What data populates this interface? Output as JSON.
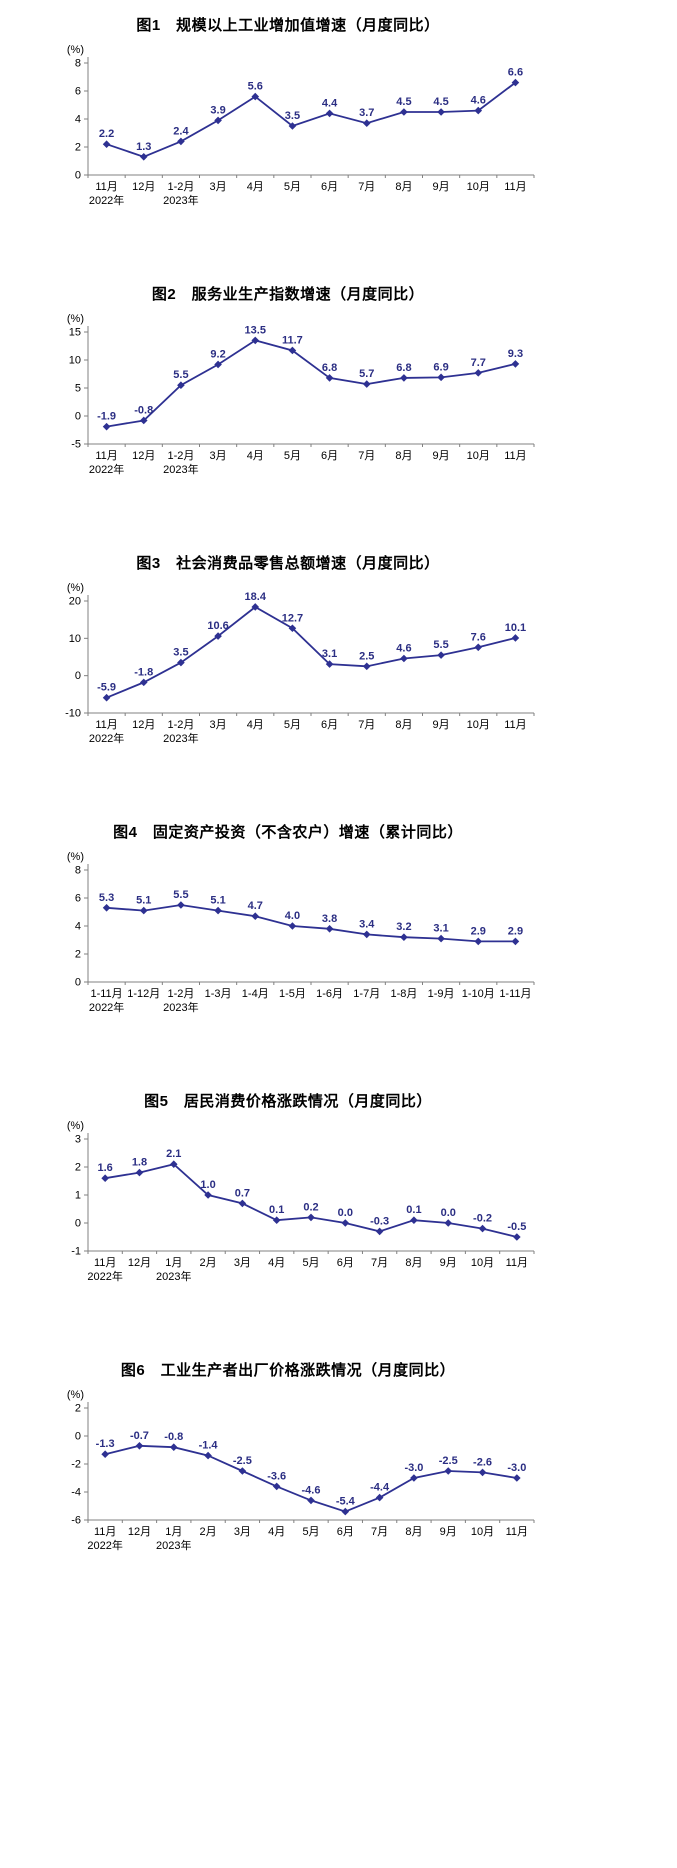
{
  "page": {
    "background": "#ffffff"
  },
  "colors": {
    "line": "#2E3192",
    "label": "#2B2E83",
    "axis": "#808080",
    "tick_text": "#000000"
  },
  "chart_data": [
    {
      "type": "line",
      "title": "图1　规模以上工业增加值增速（月度同比）",
      "unit": "(%)",
      "xlabel": "",
      "ylabel": "",
      "ylim": [
        0,
        8
      ],
      "yticks": [
        0,
        2,
        4,
        6,
        8
      ],
      "grid": false,
      "legend": null,
      "categories": [
        "11月",
        "12月",
        "1-2月",
        "3月",
        "4月",
        "5月",
        "6月",
        "7月",
        "8月",
        "9月",
        "10月",
        "11月"
      ],
      "year_marks": [
        {
          "index": 0,
          "label": "2022年"
        },
        {
          "index": 2,
          "label": "2023年"
        }
      ],
      "values": [
        2.2,
        1.3,
        2.4,
        3.9,
        5.6,
        3.5,
        4.4,
        3.7,
        4.5,
        4.5,
        4.6,
        6.6
      ],
      "labels": [
        "2.2",
        "1.3",
        "2.4",
        "3.9",
        "5.6",
        "3.5",
        "4.4",
        "3.7",
        "4.5",
        "4.5",
        "4.6",
        "6.6"
      ]
    },
    {
      "type": "line",
      "title": "图2　服务业生产指数增速（月度同比）",
      "unit": "(%)",
      "xlabel": "",
      "ylabel": "",
      "ylim": [
        -5,
        15
      ],
      "yticks": [
        -5,
        0,
        5,
        10,
        15
      ],
      "grid": false,
      "legend": null,
      "categories": [
        "11月",
        "12月",
        "1-2月",
        "3月",
        "4月",
        "5月",
        "6月",
        "7月",
        "8月",
        "9月",
        "10月",
        "11月"
      ],
      "year_marks": [
        {
          "index": 0,
          "label": "2022年"
        },
        {
          "index": 2,
          "label": "2023年"
        }
      ],
      "values": [
        -1.9,
        -0.8,
        5.5,
        9.2,
        13.5,
        11.7,
        6.8,
        5.7,
        6.8,
        6.9,
        7.7,
        9.3
      ],
      "labels": [
        "-1.9",
        "-0.8",
        "5.5",
        "9.2",
        "13.5",
        "11.7",
        "6.8",
        "5.7",
        "6.8",
        "6.9",
        "7.7",
        "9.3"
      ]
    },
    {
      "type": "line",
      "title": "图3　社会消费品零售总额增速（月度同比）",
      "unit": "(%)",
      "xlabel": "",
      "ylabel": "",
      "ylim": [
        -10,
        20
      ],
      "yticks": [
        -10,
        0,
        10,
        20
      ],
      "grid": false,
      "legend": null,
      "categories": [
        "11月",
        "12月",
        "1-2月",
        "3月",
        "4月",
        "5月",
        "6月",
        "7月",
        "8月",
        "9月",
        "10月",
        "11月"
      ],
      "year_marks": [
        {
          "index": 0,
          "label": "2022年"
        },
        {
          "index": 2,
          "label": "2023年"
        }
      ],
      "values": [
        -5.9,
        -1.8,
        3.5,
        10.6,
        18.4,
        12.7,
        3.1,
        2.5,
        4.6,
        5.5,
        7.6,
        10.1
      ],
      "labels": [
        "-5.9",
        "-1.8",
        "3.5",
        "10.6",
        "18.4",
        "12.7",
        "3.1",
        "2.5",
        "4.6",
        "5.5",
        "7.6",
        "10.1"
      ]
    },
    {
      "type": "line",
      "title": "图4　固定资产投资（不含农户）增速（累计同比）",
      "unit": "(%)",
      "xlabel": "",
      "ylabel": "",
      "ylim": [
        0,
        8
      ],
      "yticks": [
        0,
        2,
        4,
        6,
        8
      ],
      "grid": false,
      "legend": null,
      "categories": [
        "1-11月",
        "1-12月",
        "1-2月",
        "1-3月",
        "1-4月",
        "1-5月",
        "1-6月",
        "1-7月",
        "1-8月",
        "1-9月",
        "1-10月",
        "1-11月"
      ],
      "year_marks": [
        {
          "index": 0,
          "label": "2022年"
        },
        {
          "index": 2,
          "label": "2023年"
        }
      ],
      "values": [
        5.3,
        5.1,
        5.5,
        5.1,
        4.7,
        4.0,
        3.8,
        3.4,
        3.2,
        3.1,
        2.9,
        2.9
      ],
      "labels": [
        "5.3",
        "5.1",
        "5.5",
        "5.1",
        "4.7",
        "4.0",
        "3.8",
        "3.4",
        "3.2",
        "3.1",
        "2.9",
        "2.9"
      ]
    },
    {
      "type": "line",
      "title": "图5　居民消费价格涨跌情况（月度同比）",
      "unit": "(%)",
      "xlabel": "",
      "ylabel": "",
      "ylim": [
        -1,
        3
      ],
      "yticks": [
        -1,
        0,
        1,
        2,
        3
      ],
      "grid": false,
      "legend": null,
      "categories": [
        "11月",
        "12月",
        "1月",
        "2月",
        "3月",
        "4月",
        "5月",
        "6月",
        "7月",
        "8月",
        "9月",
        "10月",
        "11月"
      ],
      "year_marks": [
        {
          "index": 0,
          "label": "2022年"
        },
        {
          "index": 2,
          "label": "2023年"
        }
      ],
      "values": [
        1.6,
        1.8,
        2.1,
        1.0,
        0.7,
        0.1,
        0.2,
        0.0,
        -0.3,
        0.1,
        0.0,
        -0.2,
        -0.5
      ],
      "labels": [
        "1.6",
        "1.8",
        "2.1",
        "1.0",
        "0.7",
        "0.1",
        "0.2",
        "0.0",
        "-0.3",
        "0.1",
        "0.0",
        "-0.2",
        "-0.5"
      ]
    },
    {
      "type": "line",
      "title": "图6　工业生产者出厂价格涨跌情况（月度同比）",
      "unit": "(%)",
      "xlabel": "",
      "ylabel": "",
      "ylim": [
        -6,
        2
      ],
      "yticks": [
        -6,
        -4,
        -2,
        0,
        2
      ],
      "grid": false,
      "legend": null,
      "categories": [
        "11月",
        "12月",
        "1月",
        "2月",
        "3月",
        "4月",
        "5月",
        "6月",
        "7月",
        "8月",
        "9月",
        "10月",
        "11月"
      ],
      "year_marks": [
        {
          "index": 0,
          "label": "2022年"
        },
        {
          "index": 2,
          "label": "2023年"
        }
      ],
      "values": [
        -1.3,
        -0.7,
        -0.8,
        -1.4,
        -2.5,
        -3.6,
        -4.6,
        -5.4,
        -4.4,
        -3.0,
        -2.5,
        -2.6,
        -3.0
      ],
      "labels": [
        "-1.3",
        "-0.7",
        "-0.8",
        "-1.4",
        "-2.5",
        "-3.6",
        "-4.6",
        "-5.4",
        "-4.4",
        "-3.0",
        "-2.5",
        "-2.6",
        "-3.0"
      ]
    }
  ]
}
